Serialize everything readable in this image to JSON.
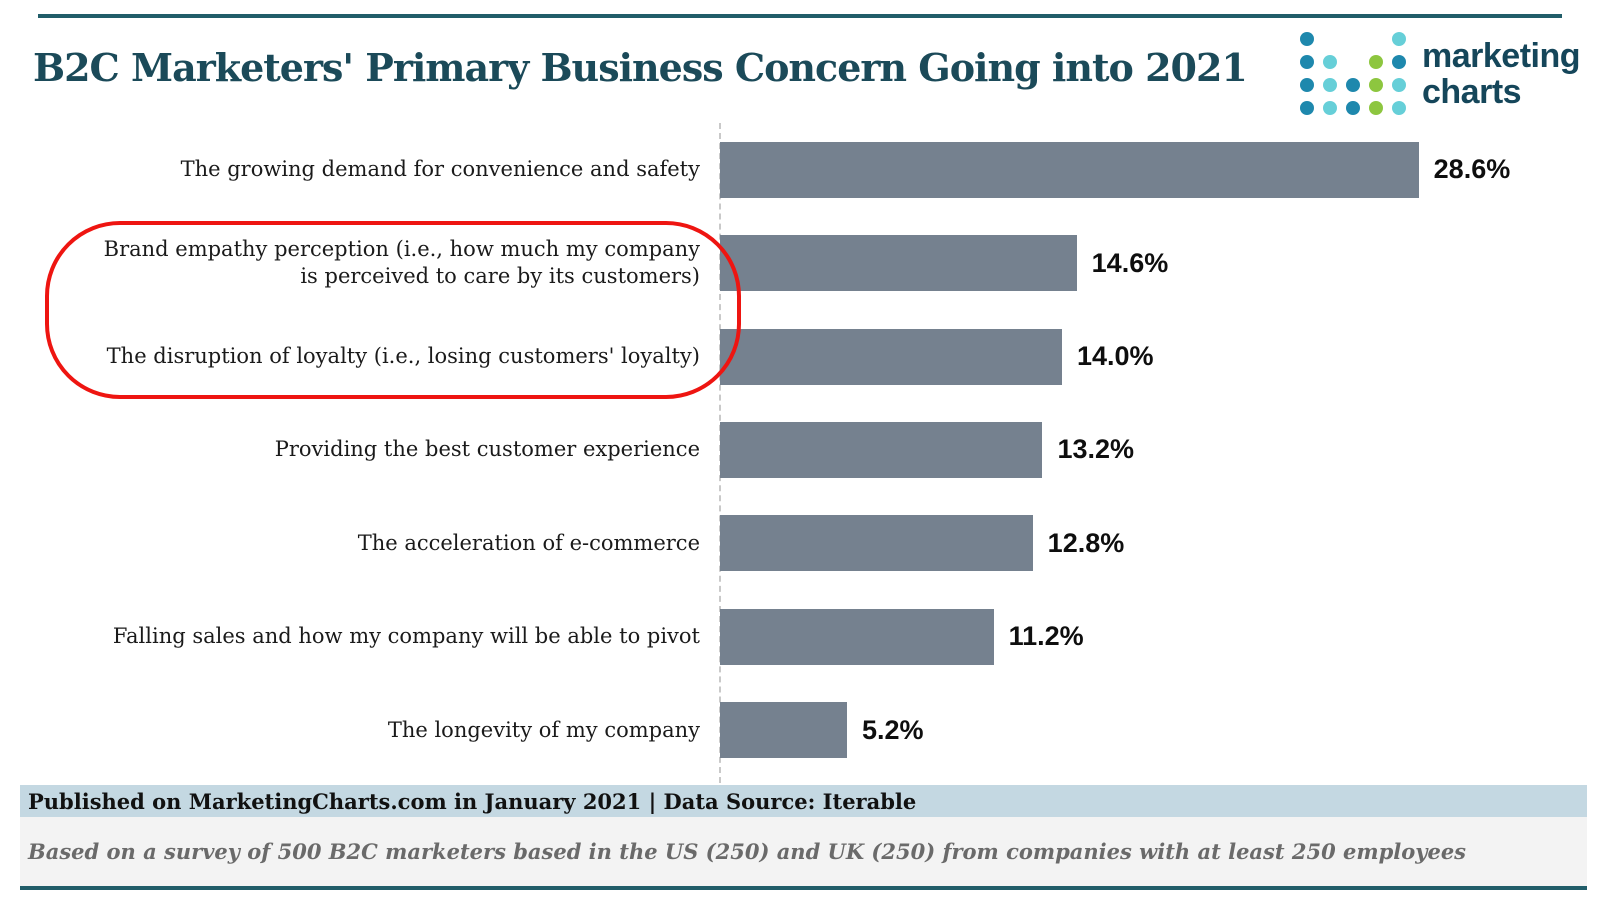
{
  "page": {
    "title": "B2C Marketers' Primary Business Concern Going into 2021",
    "accent_color": "#1b4a59"
  },
  "logo": {
    "line1": "marketing",
    "line2": "charts",
    "text_color": "#15465a",
    "dot_colors": {
      "D": "#1e88ad",
      "L": "#66cfd8",
      "G": "#8dc63f"
    },
    "dot_grid": [
      [
        "D",
        "",
        "",
        "",
        "L"
      ],
      [
        "D",
        "L",
        "",
        "G",
        "D"
      ],
      [
        "D",
        "L",
        "D",
        "G",
        "L"
      ],
      [
        "D",
        "L",
        "D",
        "G",
        "L"
      ]
    ]
  },
  "chart_data": {
    "type": "bar",
    "orientation": "horizontal",
    "title": "B2C Marketers' Primary Business Concern Going into 2021",
    "categories": [
      "The growing demand for convenience and safety",
      "Brand empathy perception (i.e., how much my company\nis perceived to care by its customers)",
      "The disruption of loyalty (i.e., losing customers' loyalty)",
      "Providing the best customer experience",
      "The acceleration of e-commerce",
      "Falling sales and how my company will be able to pivot",
      "The longevity of my company"
    ],
    "values": [
      28.6,
      14.6,
      14.0,
      13.2,
      12.8,
      11.2,
      5.2
    ],
    "value_labels": [
      "28.6%",
      "14.6%",
      "14.0%",
      "13.2%",
      "12.8%",
      "11.2%",
      "5.2%"
    ],
    "xlim": [
      0,
      35
    ],
    "grid": false,
    "legend": "none",
    "bar_color": "#75818f",
    "annotation": {
      "shape": "red-oval",
      "color": "#ee1511",
      "highlighted_categories": [
        "Brand empathy perception (i.e., how much my company is perceived to care by its customers)",
        "The disruption of loyalty (i.e., losing customers' loyalty)"
      ]
    }
  },
  "footer": {
    "published": "Published on MarketingCharts.com in January 2021 | Data Source: Iterable",
    "note": "Based on a survey of 500 B2C marketers based in the US (250) and UK (250) from companies with at least 250 employees",
    "band_color": "#c4d8e2"
  }
}
